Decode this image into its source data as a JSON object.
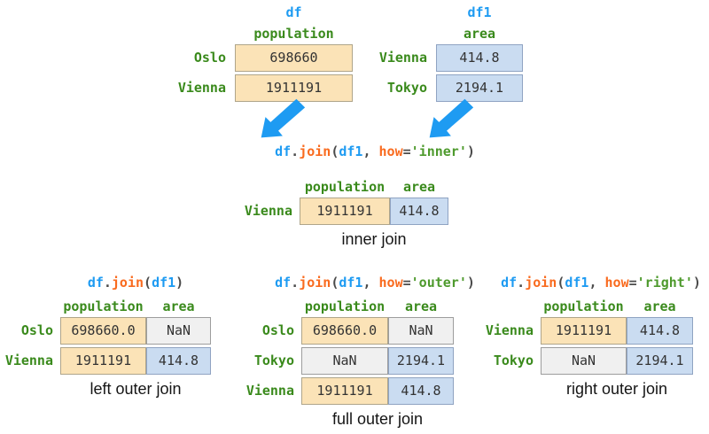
{
  "colors": {
    "code_blue": "#1E9BF2",
    "code_orange": "#F96B1F",
    "code_green": "#4E9A2D",
    "label_green": "#3A8A1C",
    "arrow_blue": "#1E9BF2",
    "cell_orange": "#FBE3B7",
    "cell_blue": "#CADCF1",
    "cell_nan_gray": "#F0F0F0"
  },
  "df_table": {
    "title": "df",
    "columns": [
      "population"
    ],
    "rows": [
      {
        "label": "Oslo",
        "cells": [
          {
            "v": "698660",
            "k": "orange"
          }
        ]
      },
      {
        "label": "Vienna",
        "cells": [
          {
            "v": "1911191",
            "k": "orange"
          }
        ]
      }
    ]
  },
  "df1_table": {
    "title": "df1",
    "columns": [
      "area"
    ],
    "rows": [
      {
        "label": "Vienna",
        "cells": [
          {
            "v": "414.8",
            "k": "blue"
          }
        ]
      },
      {
        "label": "Tokyo",
        "cells": [
          {
            "v": "2194.1",
            "k": "blue"
          }
        ]
      }
    ]
  },
  "inner_join": {
    "code": [
      {
        "t": "df",
        "c": "blue"
      },
      {
        "t": ".",
        "c": "plain"
      },
      {
        "t": "join",
        "c": "orange"
      },
      {
        "t": "(",
        "c": "plain"
      },
      {
        "t": "df1",
        "c": "blue"
      },
      {
        "t": ", ",
        "c": "plain"
      },
      {
        "t": "how",
        "c": "orange"
      },
      {
        "t": "=",
        "c": "plain"
      },
      {
        "t": "'inner'",
        "c": "green"
      },
      {
        "t": ")",
        "c": "plain"
      }
    ],
    "columns": [
      "population",
      "area"
    ],
    "rows": [
      {
        "label": "Vienna",
        "cells": [
          {
            "v": "1911191",
            "k": "orange"
          },
          {
            "v": "414.8",
            "k": "blue"
          }
        ]
      }
    ],
    "caption": "inner join"
  },
  "left_join": {
    "code": [
      {
        "t": "df",
        "c": "blue"
      },
      {
        "t": ".",
        "c": "plain"
      },
      {
        "t": "join",
        "c": "orange"
      },
      {
        "t": "(",
        "c": "plain"
      },
      {
        "t": "df1",
        "c": "blue"
      },
      {
        "t": ")",
        "c": "plain"
      }
    ],
    "columns": [
      "population",
      "area"
    ],
    "rows": [
      {
        "label": "Oslo",
        "cells": [
          {
            "v": "698660.0",
            "k": "orange"
          },
          {
            "v": "NaN",
            "k": "gray"
          }
        ]
      },
      {
        "label": "Vienna",
        "cells": [
          {
            "v": "1911191",
            "k": "orange"
          },
          {
            "v": "414.8",
            "k": "blue"
          }
        ]
      }
    ],
    "caption": "left outer join"
  },
  "full_join": {
    "code": [
      {
        "t": "df",
        "c": "blue"
      },
      {
        "t": ".",
        "c": "plain"
      },
      {
        "t": "join",
        "c": "orange"
      },
      {
        "t": "(",
        "c": "plain"
      },
      {
        "t": "df1",
        "c": "blue"
      },
      {
        "t": ", ",
        "c": "plain"
      },
      {
        "t": "how",
        "c": "orange"
      },
      {
        "t": "=",
        "c": "plain"
      },
      {
        "t": "'outer'",
        "c": "green"
      },
      {
        "t": ")",
        "c": "plain"
      }
    ],
    "columns": [
      "population",
      "area"
    ],
    "rows": [
      {
        "label": "Oslo",
        "cells": [
          {
            "v": "698660.0",
            "k": "orange"
          },
          {
            "v": "NaN",
            "k": "gray"
          }
        ]
      },
      {
        "label": "Tokyo",
        "cells": [
          {
            "v": "NaN",
            "k": "gray"
          },
          {
            "v": "2194.1",
            "k": "blue"
          }
        ]
      },
      {
        "label": "Vienna",
        "cells": [
          {
            "v": "1911191",
            "k": "orange"
          },
          {
            "v": "414.8",
            "k": "blue"
          }
        ]
      }
    ],
    "caption": "full outer join"
  },
  "right_join": {
    "code": [
      {
        "t": "df",
        "c": "blue"
      },
      {
        "t": ".",
        "c": "plain"
      },
      {
        "t": "join",
        "c": "orange"
      },
      {
        "t": "(",
        "c": "plain"
      },
      {
        "t": "df1",
        "c": "blue"
      },
      {
        "t": ", ",
        "c": "plain"
      },
      {
        "t": "how",
        "c": "orange"
      },
      {
        "t": "=",
        "c": "plain"
      },
      {
        "t": "'right'",
        "c": "green"
      },
      {
        "t": ")",
        "c": "plain"
      }
    ],
    "columns": [
      "population",
      "area"
    ],
    "rows": [
      {
        "label": "Vienna",
        "cells": [
          {
            "v": "1911191",
            "k": "orange"
          },
          {
            "v": "414.8",
            "k": "blue"
          }
        ]
      },
      {
        "label": "Tokyo",
        "cells": [
          {
            "v": "NaN",
            "k": "gray"
          },
          {
            "v": "2194.1",
            "k": "blue"
          }
        ]
      }
    ],
    "caption": "right outer join"
  }
}
